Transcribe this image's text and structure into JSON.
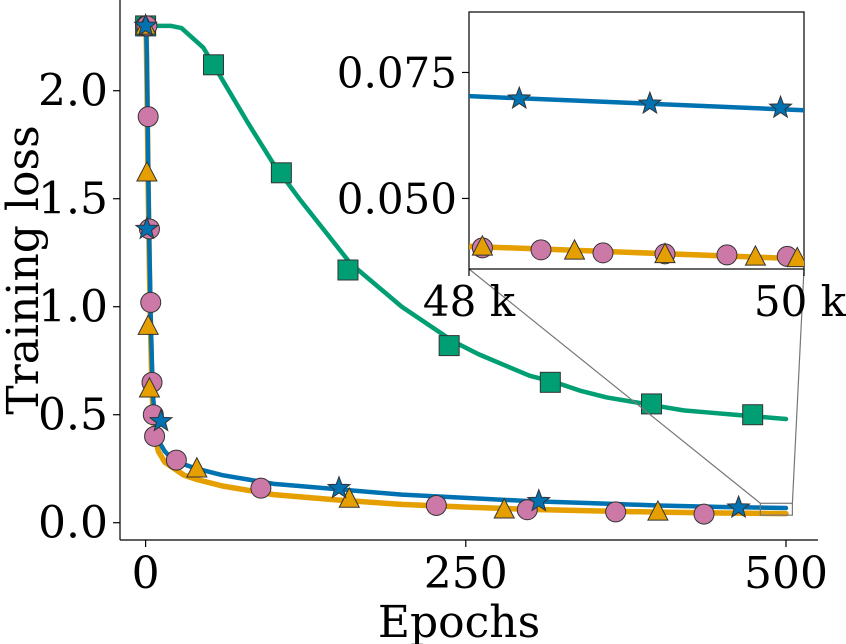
{
  "chart_data": {
    "type": "line",
    "xlabel": "Epochs",
    "ylabel": "Training loss",
    "xlim": [
      -20,
      525
    ],
    "ylim": [
      -0.08,
      2.42
    ],
    "xticks": [
      {
        "value": 0,
        "label": "0"
      },
      {
        "value": 250,
        "label": "250"
      },
      {
        "value": 500,
        "label": "500"
      }
    ],
    "yticks": [
      {
        "value": 0.0,
        "label": "0.0"
      },
      {
        "value": 0.5,
        "label": "0.5"
      },
      {
        "value": 1.0,
        "label": "1.0"
      },
      {
        "value": 1.5,
        "label": "1.5"
      },
      {
        "value": 2.0,
        "label": "2.0"
      }
    ],
    "grid": false,
    "series": [
      {
        "color": "#009E73",
        "marker": "square",
        "x": [
          0,
          10,
          20,
          28,
          45,
          60,
          80,
          100,
          120,
          140,
          160,
          180,
          200,
          220,
          240,
          260,
          280,
          300,
          320,
          340,
          360,
          380,
          400,
          420,
          440,
          460,
          480,
          500
        ],
        "y": [
          2.3,
          2.3,
          2.3,
          2.29,
          2.2,
          2.05,
          1.85,
          1.66,
          1.5,
          1.35,
          1.2,
          1.1,
          1.0,
          0.92,
          0.84,
          0.78,
          0.73,
          0.68,
          0.65,
          0.61,
          0.58,
          0.56,
          0.54,
          0.52,
          0.51,
          0.5,
          0.49,
          0.48
        ],
        "markers_x": [
          0,
          53,
          106,
          158,
          237,
          316,
          395,
          474
        ],
        "markers_y": [
          2.3,
          2.12,
          1.62,
          1.17,
          0.82,
          0.65,
          0.55,
          0.5
        ]
      },
      {
        "color": "#CC79A7",
        "marker": "circle",
        "markers_x": [
          0,
          1,
          2,
          3,
          4,
          5,
          6,
          7,
          24,
          90,
          227,
          298,
          367,
          436
        ],
        "markers_y": [
          2.3,
          2.3,
          1.88,
          1.36,
          1.02,
          0.65,
          0.5,
          0.4,
          0.29,
          0.16,
          0.08,
          0.06,
          0.05,
          0.04
        ]
      },
      {
        "color": "#E69F00",
        "marker": "triangle",
        "x": [
          0,
          0.5,
          1,
          1.5,
          2,
          3,
          4,
          5,
          6,
          8,
          10,
          15,
          20,
          30,
          40,
          60,
          80,
          100,
          150,
          200,
          250,
          300,
          350,
          400,
          450,
          500
        ],
        "y": [
          2.3,
          2.25,
          2.05,
          1.8,
          1.55,
          1.15,
          0.85,
          0.62,
          0.48,
          0.38,
          0.33,
          0.28,
          0.26,
          0.22,
          0.2,
          0.17,
          0.15,
          0.13,
          0.105,
          0.085,
          0.072,
          0.062,
          0.055,
          0.049,
          0.045,
          0.042
        ],
        "markers_x": [
          0,
          1,
          2,
          3,
          40,
          159,
          280,
          400
        ],
        "markers_y": [
          2.3,
          1.62,
          0.91,
          0.62,
          0.25,
          0.11,
          0.06,
          0.05
        ]
      },
      {
        "color": "#0072B2",
        "marker": "star",
        "x": [
          0,
          0.5,
          1,
          1.5,
          2,
          3,
          4,
          5,
          6,
          8,
          10,
          15,
          20,
          30,
          40,
          60,
          80,
          100,
          150,
          200,
          250,
          300,
          350,
          400,
          450,
          500
        ],
        "y": [
          2.3,
          2.28,
          2.15,
          1.9,
          1.65,
          1.25,
          0.95,
          0.72,
          0.57,
          0.44,
          0.38,
          0.33,
          0.3,
          0.27,
          0.25,
          0.22,
          0.2,
          0.18,
          0.155,
          0.13,
          0.115,
          0.1,
          0.09,
          0.08,
          0.073,
          0.068
        ],
        "markers_x": [
          0,
          1,
          12,
          151,
          307,
          463
        ],
        "markers_y": [
          2.3,
          1.36,
          0.47,
          0.16,
          0.1,
          0.07
        ]
      }
    ],
    "inset": {
      "xlim": [
        48000,
        50000
      ],
      "ylim": [
        0.036,
        0.087
      ],
      "xticks": [
        {
          "value": 48000,
          "label": "48 k"
        },
        {
          "value": 50000,
          "label": "50 k"
        }
      ],
      "yticks": [
        {
          "value": 0.05,
          "label": "0.050"
        },
        {
          "value": 0.075,
          "label": "0.075"
        }
      ],
      "series": [
        {
          "color": "#0072B2",
          "marker": "star",
          "x": [
            48000,
            50000
          ],
          "y": [
            0.0703,
            0.0675
          ],
          "markers_x": [
            48300,
            49080,
            49860
          ],
          "markers_y": [
            0.0698,
            0.0688,
            0.068
          ]
        },
        {
          "color": "#CC79A7",
          "marker": "circle",
          "markers_x": [
            48080,
            48430,
            48800,
            49170,
            49540,
            49900
          ],
          "markers_y": [
            0.0402,
            0.0398,
            0.0392,
            0.039,
            0.0388,
            0.0385
          ]
        },
        {
          "color": "#E69F00",
          "marker": "triangle",
          "x": [
            48000,
            50000
          ],
          "y": [
            0.0405,
            0.038
          ],
          "markers_x": [
            48080,
            48630,
            49170,
            49710,
            49960
          ],
          "markers_y": [
            0.0404,
            0.0396,
            0.0389,
            0.0384,
            0.0381
          ]
        }
      ]
    }
  }
}
